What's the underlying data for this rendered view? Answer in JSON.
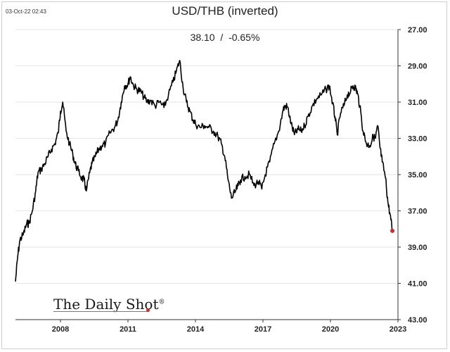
{
  "header": {
    "timestamp": "03-Oct-22 02:43",
    "title": "USD/THB (inverted)",
    "value": "38.10",
    "separator": "/",
    "change": "-0.65%"
  },
  "branding": {
    "logo_text": "The Daily Shot",
    "logo_mark": "®"
  },
  "colors": {
    "line": "#000000",
    "marker": "#d62a2a",
    "grid": "#e6e6e6"
  },
  "chart_data": {
    "type": "line",
    "title": "USD/THB (inverted)",
    "xlabel": "",
    "ylabel": "",
    "y_inverted": true,
    "y_axis_position": "right",
    "ylim": [
      27.0,
      43.0
    ],
    "xlim": [
      2006.0,
      2023.0
    ],
    "y_ticks": [
      "27.00",
      "29.00",
      "31.00",
      "33.00",
      "35.00",
      "37.00",
      "39.00",
      "41.00",
      "43.00"
    ],
    "y_tick_values": [
      27,
      29,
      31,
      33,
      35,
      37,
      39,
      41,
      43
    ],
    "x_ticks": [
      "2008",
      "2011",
      "2014",
      "2017",
      "2020",
      "2023"
    ],
    "x_tick_values": [
      2008,
      2011,
      2014,
      2017,
      2020,
      2023
    ],
    "grid": true,
    "series": [
      {
        "name": "USD/THB",
        "x": [
          2006.0,
          2006.1,
          2006.2,
          2006.35,
          2006.5,
          2006.6,
          2006.75,
          2006.9,
          2007.0,
          2007.15,
          2007.3,
          2007.45,
          2007.6,
          2007.75,
          2007.9,
          2008.0,
          2008.1,
          2008.25,
          2008.4,
          2008.55,
          2008.65,
          2008.8,
          2008.95,
          2009.05,
          2009.15,
          2009.3,
          2009.4,
          2009.55,
          2009.7,
          2009.85,
          2010.0,
          2010.2,
          2010.4,
          2010.55,
          2010.7,
          2010.85,
          2011.0,
          2011.1,
          2011.25,
          2011.4,
          2011.55,
          2011.7,
          2011.85,
          2012.0,
          2012.2,
          2012.4,
          2012.6,
          2012.8,
          2013.0,
          2013.15,
          2013.3,
          2013.45,
          2013.6,
          2013.75,
          2013.9,
          2014.0,
          2014.2,
          2014.4,
          2014.6,
          2014.8,
          2015.0,
          2015.15,
          2015.3,
          2015.45,
          2015.6,
          2015.75,
          2015.9,
          2016.0,
          2016.2,
          2016.4,
          2016.6,
          2016.8,
          2016.95,
          2017.1,
          2017.3,
          2017.5,
          2017.7,
          2017.9,
          2018.0,
          2018.1,
          2018.25,
          2018.4,
          2018.55,
          2018.7,
          2018.85,
          2019.0,
          2019.2,
          2019.4,
          2019.6,
          2019.8,
          2019.95,
          2020.1,
          2020.2,
          2020.3,
          2020.45,
          2020.6,
          2020.75,
          2020.9,
          2021.0,
          2021.1,
          2021.2,
          2021.3,
          2021.45,
          2021.6,
          2021.75,
          2021.9,
          2022.0,
          2022.1,
          2022.2,
          2022.3,
          2022.45,
          2022.55,
          2022.65,
          2022.75
        ],
        "values": [
          40.9,
          39.5,
          38.6,
          38.3,
          37.7,
          37.7,
          37.0,
          35.9,
          34.9,
          34.7,
          34.4,
          34.0,
          33.6,
          33.3,
          32.7,
          31.5,
          31.0,
          32.6,
          33.3,
          33.9,
          34.4,
          34.8,
          35.2,
          35.3,
          35.9,
          34.9,
          34.4,
          34.0,
          33.6,
          33.4,
          33.3,
          32.7,
          32.4,
          32.0,
          31.0,
          30.1,
          30.0,
          29.6,
          30.1,
          30.3,
          30.4,
          30.7,
          31.0,
          30.9,
          31.2,
          31.0,
          31.3,
          30.6,
          29.9,
          29.3,
          28.7,
          30.2,
          31.0,
          31.5,
          32.0,
          32.2,
          32.4,
          32.3,
          32.4,
          32.6,
          32.9,
          33.3,
          34.0,
          35.3,
          36.3,
          36.0,
          35.6,
          35.3,
          35.1,
          35.0,
          35.6,
          35.4,
          35.8,
          35.0,
          34.3,
          33.3,
          32.6,
          31.4,
          31.2,
          31.3,
          32.2,
          32.8,
          32.5,
          32.6,
          32.3,
          31.8,
          31.2,
          30.8,
          30.6,
          30.3,
          30.1,
          31.1,
          31.8,
          32.8,
          31.6,
          31.2,
          30.6,
          30.4,
          30.1,
          30.2,
          30.5,
          31.2,
          32.6,
          33.3,
          33.4,
          32.9,
          33.0,
          32.3,
          33.5,
          34.3,
          35.2,
          36.5,
          37.2,
          38.1
        ]
      }
    ],
    "last_point": {
      "x": 2022.75,
      "y": 38.1
    }
  }
}
